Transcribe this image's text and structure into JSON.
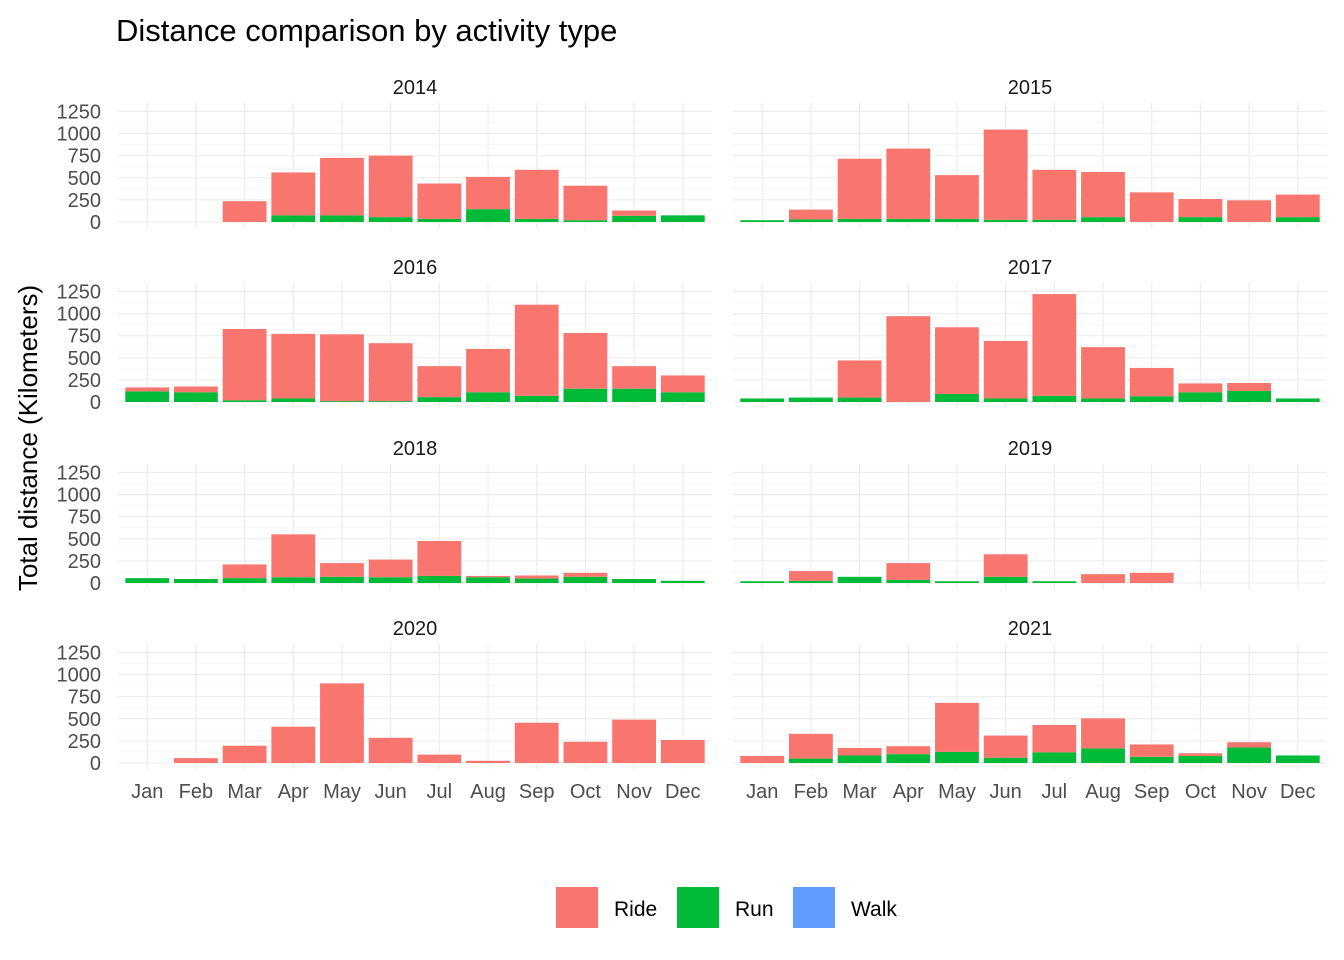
{
  "chart_data": {
    "type": "bar",
    "stacked": true,
    "title": "Distance comparison by activity type",
    "xlabel": "",
    "ylabel": "Total distance (Kilometers)",
    "ylim": [
      0,
      1300
    ],
    "yticks": [
      0,
      250,
      500,
      750,
      1000,
      1250
    ],
    "grid": true,
    "legend": {
      "position": "bottom",
      "entries": [
        "Ride",
        "Run",
        "Walk"
      ]
    },
    "colors": {
      "Ride": "#F8766D",
      "Run": "#00BA38",
      "Walk": "#619CFF"
    },
    "categories": [
      "Jan",
      "Feb",
      "Mar",
      "Apr",
      "May",
      "Jun",
      "Jul",
      "Aug",
      "Sep",
      "Oct",
      "Nov",
      "Dec"
    ],
    "panels": [
      {
        "label": "2014",
        "series": [
          {
            "name": "Run",
            "values": [
              0,
              0,
              0,
              75,
              75,
              55,
              35,
              145,
              35,
              20,
              70,
              75
            ]
          },
          {
            "name": "Ride",
            "values": [
              0,
              0,
              235,
              485,
              650,
              695,
              400,
              365,
              555,
              390,
              60,
              0
            ]
          },
          {
            "name": "Walk",
            "values": [
              0,
              0,
              0,
              0,
              0,
              0,
              0,
              0,
              0,
              0,
              0,
              0
            ]
          }
        ]
      },
      {
        "label": "2015",
        "series": [
          {
            "name": "Run",
            "values": [
              20,
              30,
              35,
              35,
              35,
              25,
              25,
              55,
              0,
              55,
              0,
              55
            ]
          },
          {
            "name": "Ride",
            "values": [
              0,
              110,
              680,
              795,
              495,
              1020,
              565,
              510,
              335,
              205,
              245,
              255
            ]
          },
          {
            "name": "Walk",
            "values": [
              0,
              0,
              0,
              0,
              0,
              0,
              0,
              0,
              0,
              0,
              0,
              0
            ]
          }
        ]
      },
      {
        "label": "2016",
        "series": [
          {
            "name": "Run",
            "values": [
              120,
              110,
              20,
              40,
              10,
              10,
              55,
              110,
              70,
              150,
              150,
              110
            ]
          },
          {
            "name": "Ride",
            "values": [
              45,
              65,
              805,
              730,
              755,
              655,
              350,
              490,
              1030,
              630,
              255,
              190
            ]
          },
          {
            "name": "Walk",
            "values": [
              0,
              0,
              0,
              0,
              0,
              0,
              0,
              0,
              0,
              0,
              0,
              0
            ]
          }
        ]
      },
      {
        "label": "2017",
        "series": [
          {
            "name": "Run",
            "values": [
              40,
              50,
              50,
              0,
              90,
              40,
              70,
              40,
              65,
              110,
              125,
              40
            ]
          },
          {
            "name": "Ride",
            "values": [
              0,
              0,
              420,
              970,
              755,
              650,
              1150,
              580,
              320,
              100,
              90,
              0
            ]
          },
          {
            "name": "Walk",
            "values": [
              0,
              0,
              0,
              0,
              0,
              0,
              0,
              0,
              0,
              0,
              0,
              0
            ]
          }
        ]
      },
      {
        "label": "2018",
        "series": [
          {
            "name": "Run",
            "values": [
              55,
              45,
              55,
              65,
              70,
              65,
              80,
              65,
              50,
              70,
              45,
              25
            ]
          },
          {
            "name": "Ride",
            "values": [
              0,
              0,
              155,
              485,
              155,
              200,
              395,
              15,
              35,
              45,
              0,
              0
            ]
          },
          {
            "name": "Walk",
            "values": [
              0,
              0,
              0,
              0,
              0,
              0,
              0,
              0,
              0,
              0,
              0,
              0
            ]
          }
        ]
      },
      {
        "label": "2019",
        "series": [
          {
            "name": "Run",
            "values": [
              20,
              25,
              70,
              35,
              20,
              70,
              20,
              0,
              0,
              0,
              0,
              0
            ]
          },
          {
            "name": "Ride",
            "values": [
              0,
              110,
              0,
              190,
              0,
              255,
              0,
              100,
              115,
              0,
              0,
              0
            ]
          },
          {
            "name": "Walk",
            "values": [
              0,
              0,
              0,
              0,
              0,
              0,
              0,
              0,
              0,
              0,
              0,
              0
            ]
          }
        ]
      },
      {
        "label": "2020",
        "series": [
          {
            "name": "Run",
            "values": [
              0,
              0,
              0,
              0,
              0,
              0,
              0,
              0,
              0,
              0,
              0,
              0
            ]
          },
          {
            "name": "Ride",
            "values": [
              0,
              55,
              195,
              410,
              900,
              285,
              95,
              25,
              455,
              240,
              490,
              260
            ]
          },
          {
            "name": "Walk",
            "values": [
              0,
              0,
              0,
              0,
              0,
              0,
              0,
              0,
              0,
              0,
              0,
              0
            ]
          }
        ]
      },
      {
        "label": "2021",
        "series": [
          {
            "name": "Run",
            "values": [
              0,
              50,
              85,
              100,
              125,
              60,
              120,
              165,
              70,
              80,
              175,
              85
            ]
          },
          {
            "name": "Ride",
            "values": [
              80,
              280,
              85,
              90,
              555,
              250,
              310,
              340,
              140,
              30,
              60,
              0
            ]
          },
          {
            "name": "Walk",
            "values": [
              0,
              0,
              0,
              0,
              0,
              0,
              0,
              0,
              0,
              0,
              0,
              0
            ]
          }
        ]
      }
    ]
  }
}
